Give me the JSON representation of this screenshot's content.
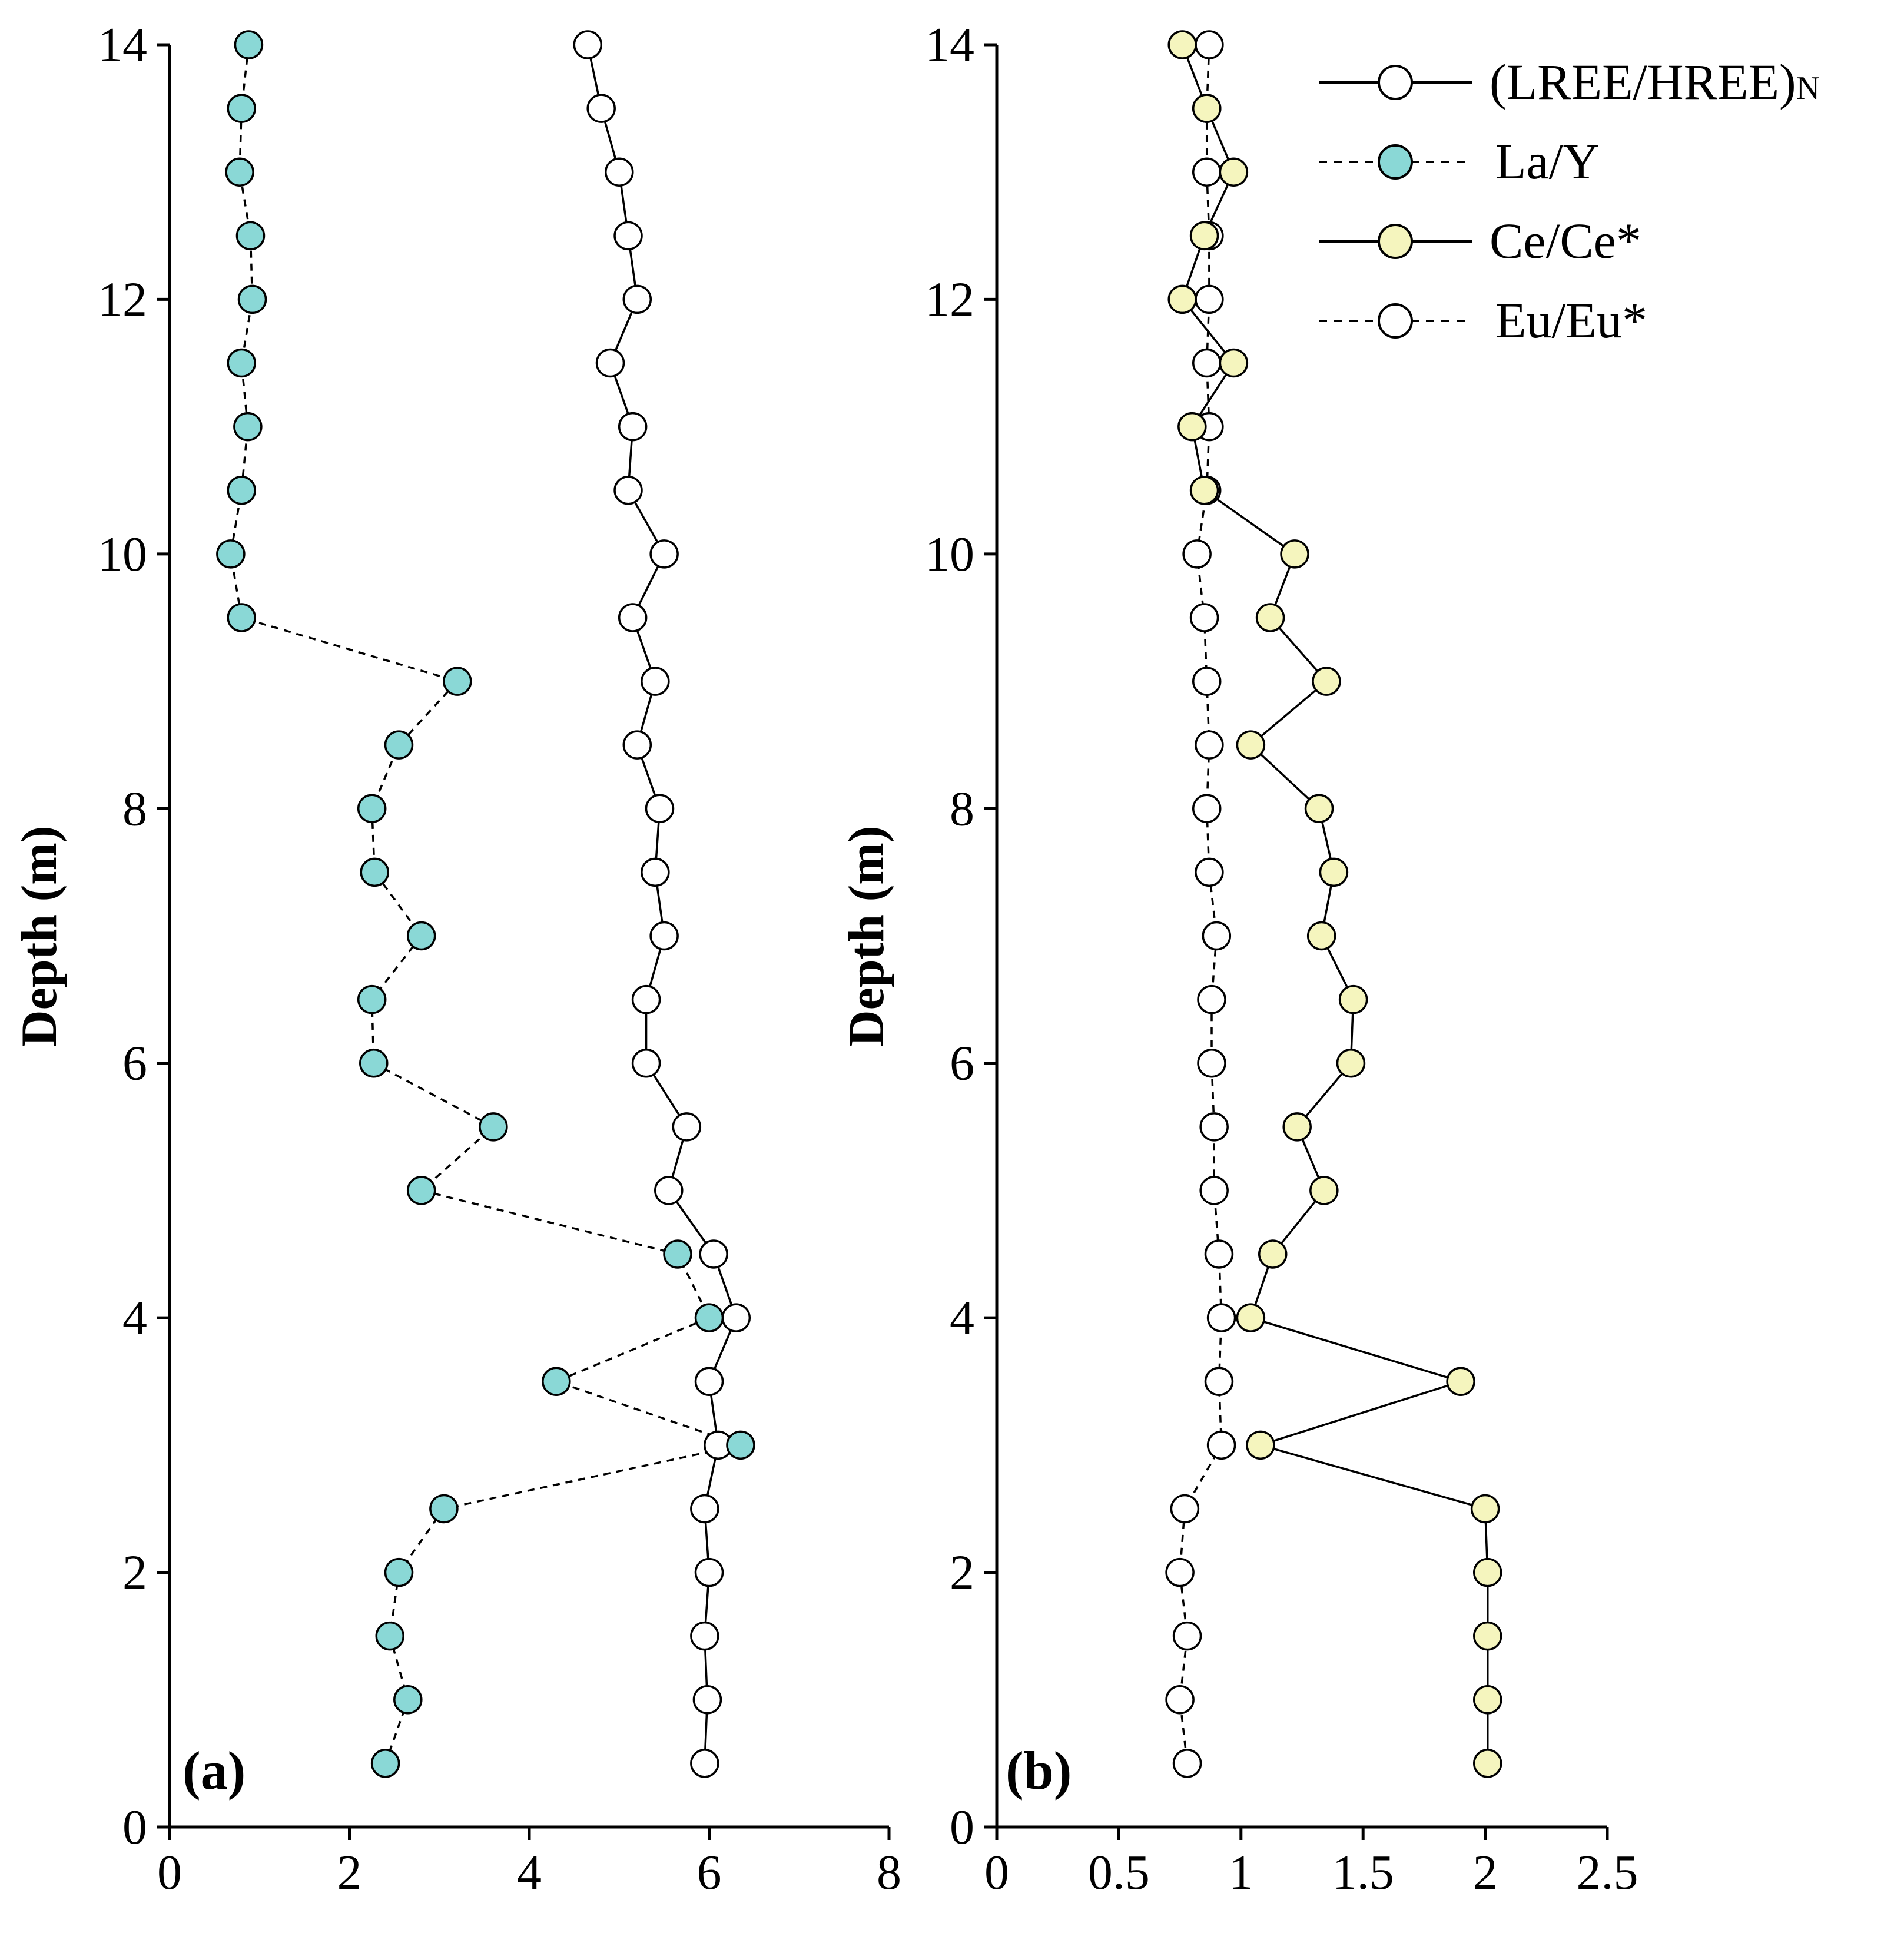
{
  "chart_data": [
    {
      "type": "scatter",
      "panel_label": "(a)",
      "xlabel": "",
      "ylabel": "Depth (m)",
      "xlim": [
        0,
        8
      ],
      "ylim": [
        0,
        14
      ],
      "x_ticks": [
        "0",
        "2",
        "4",
        "6",
        "8"
      ],
      "y_ticks": [
        "0",
        "2",
        "4",
        "6",
        "8",
        "10",
        "12",
        "14"
      ],
      "series": [
        {
          "name": "(LREE/HREE)N",
          "style": "solid",
          "fill": "#ffffff",
          "points": [
            {
              "x": 4.65,
              "y": 14.0
            },
            {
              "x": 4.8,
              "y": 13.5
            },
            {
              "x": 5.0,
              "y": 13.0
            },
            {
              "x": 5.1,
              "y": 12.5
            },
            {
              "x": 5.2,
              "y": 12.0
            },
            {
              "x": 4.9,
              "y": 11.5
            },
            {
              "x": 5.15,
              "y": 11.0
            },
            {
              "x": 5.1,
              "y": 10.5
            },
            {
              "x": 5.5,
              "y": 10.0
            },
            {
              "x": 5.15,
              "y": 9.5
            },
            {
              "x": 5.4,
              "y": 9.0
            },
            {
              "x": 5.2,
              "y": 8.5
            },
            {
              "x": 5.45,
              "y": 8.0
            },
            {
              "x": 5.4,
              "y": 7.5
            },
            {
              "x": 5.5,
              "y": 7.0
            },
            {
              "x": 5.3,
              "y": 6.5
            },
            {
              "x": 5.3,
              "y": 6.0
            },
            {
              "x": 5.75,
              "y": 5.5
            },
            {
              "x": 5.55,
              "y": 5.0
            },
            {
              "x": 6.05,
              "y": 4.5
            },
            {
              "x": 6.3,
              "y": 4.0
            },
            {
              "x": 6.0,
              "y": 3.5
            },
            {
              "x": 6.1,
              "y": 3.0
            },
            {
              "x": 5.95,
              "y": 2.5
            },
            {
              "x": 6.0,
              "y": 2.0
            },
            {
              "x": 5.95,
              "y": 1.5
            },
            {
              "x": 5.98,
              "y": 1.0
            },
            {
              "x": 5.95,
              "y": 0.5
            }
          ]
        },
        {
          "name": "La/Y",
          "style": "dashed",
          "fill": "#8ad8d6",
          "points": [
            {
              "x": 0.88,
              "y": 14.0
            },
            {
              "x": 0.8,
              "y": 13.5
            },
            {
              "x": 0.78,
              "y": 13.0
            },
            {
              "x": 0.9,
              "y": 12.5
            },
            {
              "x": 0.92,
              "y": 12.0
            },
            {
              "x": 0.8,
              "y": 11.5
            },
            {
              "x": 0.87,
              "y": 11.0
            },
            {
              "x": 0.8,
              "y": 10.5
            },
            {
              "x": 0.68,
              "y": 10.0
            },
            {
              "x": 0.8,
              "y": 9.5
            },
            {
              "x": 3.2,
              "y": 9.0
            },
            {
              "x": 2.55,
              "y": 8.5
            },
            {
              "x": 2.25,
              "y": 8.0
            },
            {
              "x": 2.28,
              "y": 7.5
            },
            {
              "x": 2.8,
              "y": 7.0
            },
            {
              "x": 2.25,
              "y": 6.5
            },
            {
              "x": 2.27,
              "y": 6.0
            },
            {
              "x": 3.6,
              "y": 5.5
            },
            {
              "x": 2.8,
              "y": 5.0
            },
            {
              "x": 5.65,
              "y": 4.5
            },
            {
              "x": 6.0,
              "y": 4.0
            },
            {
              "x": 4.3,
              "y": 3.5
            },
            {
              "x": 6.35,
              "y": 3.0
            },
            {
              "x": 3.05,
              "y": 2.5
            },
            {
              "x": 2.55,
              "y": 2.0
            },
            {
              "x": 2.45,
              "y": 1.5
            },
            {
              "x": 2.65,
              "y": 1.0
            },
            {
              "x": 2.4,
              "y": 0.5
            }
          ]
        }
      ]
    },
    {
      "type": "scatter",
      "panel_label": "(b)",
      "xlabel": "",
      "ylabel": "Depth (m)",
      "xlim": [
        0,
        2.5
      ],
      "ylim": [
        0,
        14
      ],
      "x_ticks": [
        "0",
        "0.5",
        "1",
        "1.5",
        "2",
        "2.5"
      ],
      "y_ticks": [
        "0",
        "2",
        "4",
        "6",
        "8",
        "10",
        "12",
        "14"
      ],
      "series": [
        {
          "name": "Eu/Eu*",
          "style": "dashed",
          "fill": "#ffffff",
          "points": [
            {
              "x": 0.87,
              "y": 14.0
            },
            {
              "x": 0.86,
              "y": 13.5
            },
            {
              "x": 0.86,
              "y": 13.0
            },
            {
              "x": 0.87,
              "y": 12.5
            },
            {
              "x": 0.87,
              "y": 12.0
            },
            {
              "x": 0.86,
              "y": 11.5
            },
            {
              "x": 0.87,
              "y": 11.0
            },
            {
              "x": 0.86,
              "y": 10.5
            },
            {
              "x": 0.82,
              "y": 10.0
            },
            {
              "x": 0.85,
              "y": 9.5
            },
            {
              "x": 0.86,
              "y": 9.0
            },
            {
              "x": 0.87,
              "y": 8.5
            },
            {
              "x": 0.86,
              "y": 8.0
            },
            {
              "x": 0.87,
              "y": 7.5
            },
            {
              "x": 0.9,
              "y": 7.0
            },
            {
              "x": 0.88,
              "y": 6.5
            },
            {
              "x": 0.88,
              "y": 6.0
            },
            {
              "x": 0.89,
              "y": 5.5
            },
            {
              "x": 0.89,
              "y": 5.0
            },
            {
              "x": 0.91,
              "y": 4.5
            },
            {
              "x": 0.92,
              "y": 4.0
            },
            {
              "x": 0.91,
              "y": 3.5
            },
            {
              "x": 0.92,
              "y": 3.0
            },
            {
              "x": 0.77,
              "y": 2.5
            },
            {
              "x": 0.75,
              "y": 2.0
            },
            {
              "x": 0.78,
              "y": 1.5
            },
            {
              "x": 0.75,
              "y": 1.0
            },
            {
              "x": 0.78,
              "y": 0.5
            }
          ]
        },
        {
          "name": "Ce/Ce*",
          "style": "solid",
          "fill": "#f5f5be",
          "points": [
            {
              "x": 0.76,
              "y": 14.0
            },
            {
              "x": 0.86,
              "y": 13.5
            },
            {
              "x": 0.97,
              "y": 13.0
            },
            {
              "x": 0.85,
              "y": 12.5
            },
            {
              "x": 0.76,
              "y": 12.0
            },
            {
              "x": 0.97,
              "y": 11.5
            },
            {
              "x": 0.8,
              "y": 11.0
            },
            {
              "x": 0.85,
              "y": 10.5
            },
            {
              "x": 1.22,
              "y": 10.0
            },
            {
              "x": 1.12,
              "y": 9.5
            },
            {
              "x": 1.35,
              "y": 9.0
            },
            {
              "x": 1.04,
              "y": 8.5
            },
            {
              "x": 1.32,
              "y": 8.0
            },
            {
              "x": 1.38,
              "y": 7.5
            },
            {
              "x": 1.33,
              "y": 7.0
            },
            {
              "x": 1.46,
              "y": 6.5
            },
            {
              "x": 1.45,
              "y": 6.0
            },
            {
              "x": 1.23,
              "y": 5.5
            },
            {
              "x": 1.34,
              "y": 5.0
            },
            {
              "x": 1.13,
              "y": 4.5
            },
            {
              "x": 1.04,
              "y": 4.0
            },
            {
              "x": 1.9,
              "y": 3.5
            },
            {
              "x": 1.08,
              "y": 3.0
            },
            {
              "x": 2.0,
              "y": 2.5
            },
            {
              "x": 2.01,
              "y": 2.0
            },
            {
              "x": 2.01,
              "y": 1.5
            },
            {
              "x": 2.01,
              "y": 1.0
            },
            {
              "x": 2.01,
              "y": 0.5
            }
          ]
        }
      ]
    }
  ],
  "legend": {
    "placement": "top-right",
    "items": [
      {
        "label": "(LREE/HREE)",
        "subscript": "N",
        "style": "solid",
        "fill": "#ffffff"
      },
      {
        "label": "La/Y",
        "subscript": "",
        "style": "dashed",
        "fill": "#8ad8d6"
      },
      {
        "label": "Ce/Ce*",
        "subscript": "",
        "style": "solid",
        "fill": "#f5f5be"
      },
      {
        "label": "Eu/Eu*",
        "subscript": "",
        "style": "dashed",
        "fill": "#ffffff"
      }
    ]
  }
}
